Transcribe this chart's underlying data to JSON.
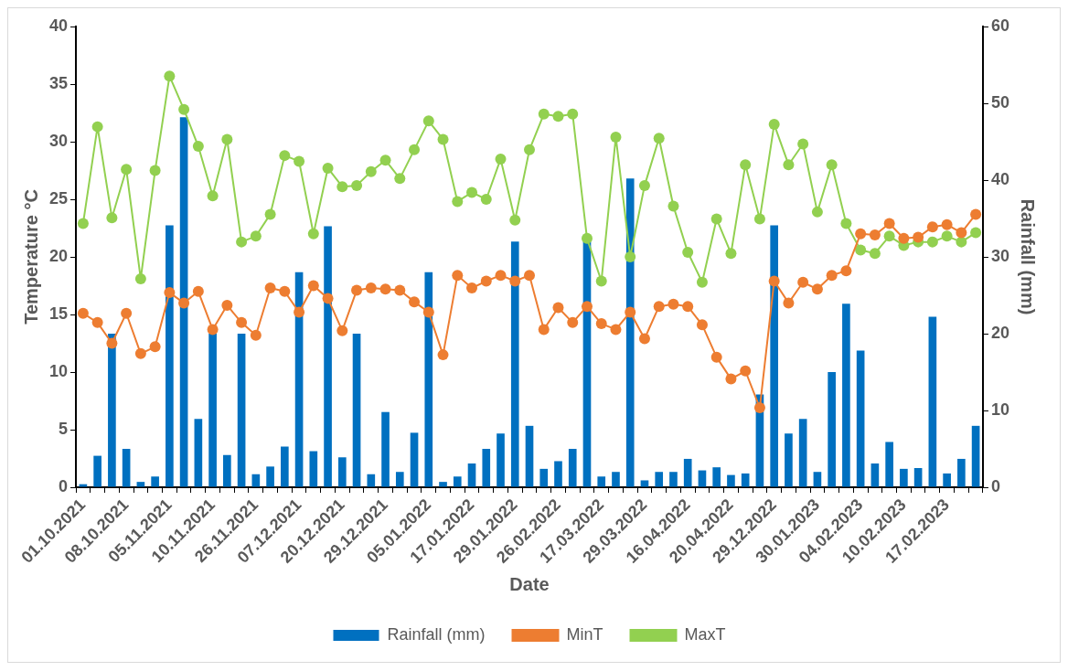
{
  "chart_data": {
    "type": "bar",
    "xlabel": "Date",
    "ylabel": "Temperature °C",
    "y2label": "Rainfall (mm)",
    "categories": [
      "01.10.2021",
      null,
      null,
      "08.10.2021",
      null,
      null,
      "05.11.2021",
      null,
      null,
      "10.11.2021",
      null,
      null,
      "26.11.2021",
      null,
      null,
      "07.12.2021",
      null,
      null,
      "20.12.2021",
      null,
      null,
      "29.12.2021",
      null,
      null,
      "05.01.2022",
      null,
      null,
      "17.01.2022",
      null,
      null,
      "29.01.2022",
      null,
      null,
      "26.02.2022",
      null,
      null,
      "17.03.2022",
      null,
      null,
      "29.03.2022",
      null,
      null,
      "16.04.2022",
      null,
      null,
      "20.04.2022",
      null,
      null,
      "29.12.2022",
      null,
      null,
      "30.01.2023",
      null,
      null,
      "04.02.2023",
      null,
      null,
      "10.02.2023",
      null,
      null,
      "17.02.2023",
      null,
      null
    ],
    "series": [
      {
        "name": "Rainfall (mm)",
        "axis": "y2",
        "color": "#0070c0",
        "values": [
          0.4,
          4.1,
          20,
          5.0,
          0.7,
          1.4,
          34.1,
          48.2,
          8.9,
          20,
          4.2,
          20,
          1.7,
          2.7,
          5.3,
          28,
          4.7,
          34,
          3.9,
          20,
          1.7,
          9.8,
          2.0,
          7.1,
          28,
          0.7,
          1.4,
          3.1,
          5.0,
          7.0,
          32,
          8.0,
          2.4,
          3.4,
          5.0,
          32,
          1.4,
          2.0,
          40.2,
          0.9,
          2.0,
          2.0,
          3.7,
          2.2,
          2.6,
          1.6,
          1.8,
          12.1,
          34.1,
          7.0,
          8.9,
          2.0,
          15,
          23.9,
          17.8,
          3.1,
          5.9,
          2.4,
          2.5,
          22.2,
          1.8,
          3.7,
          8.0
        ]
      },
      {
        "name": "MinT",
        "type": "line",
        "color": "#ed7d31",
        "values": [
          15.1,
          14.3,
          12.5,
          15.1,
          11.6,
          12.2,
          16.9,
          16.0,
          17.0,
          13.7,
          15.8,
          14.3,
          13.2,
          17.3,
          17.0,
          15.2,
          17.5,
          16.4,
          13.6,
          17.1,
          17.3,
          17.2,
          17.1,
          16.1,
          15.2,
          11.5,
          18.4,
          17.3,
          17.9,
          18.4,
          17.9,
          18.4,
          13.7,
          15.6,
          14.3,
          15.7,
          14.2,
          13.7,
          15.2,
          12.9,
          15.7,
          15.9,
          15.7,
          14.1,
          11.3,
          9.4,
          10.1,
          6.9,
          17.9,
          16.0,
          17.8,
          17.2,
          18.4,
          18.8,
          22.0,
          21.9,
          22.9,
          21.6,
          21.7,
          22.6,
          22.8,
          22.1,
          23.7
        ]
      },
      {
        "name": "MaxT",
        "type": "line",
        "color": "#92d050",
        "values": [
          22.9,
          31.3,
          23.4,
          27.6,
          18.1,
          27.5,
          35.7,
          32.8,
          29.6,
          25.3,
          30.2,
          21.3,
          21.8,
          23.7,
          28.8,
          28.3,
          22.0,
          27.7,
          26.1,
          26.2,
          27.4,
          28.4,
          26.8,
          29.3,
          31.8,
          30.2,
          24.8,
          25.6,
          25.0,
          28.5,
          23.2,
          29.3,
          32.4,
          32.2,
          32.4,
          21.6,
          17.9,
          30.4,
          20.0,
          26.2,
          30.3,
          24.4,
          20.4,
          17.8,
          23.3,
          20.3,
          28.0,
          23.3,
          31.5,
          28.0,
          29.8,
          23.9,
          28.0,
          22.9,
          20.6,
          20.3,
          21.8,
          21.0,
          21.3,
          21.3,
          21.8,
          21.3,
          22.1
        ]
      }
    ],
    "ylim": [
      0,
      40
    ],
    "yticks": [
      0,
      5,
      10,
      15,
      20,
      25,
      30,
      35,
      40
    ],
    "y2lim": [
      0,
      60
    ],
    "y2ticks": [
      0,
      10,
      20,
      30,
      40,
      50,
      60
    ],
    "grid": false,
    "legend": "bottom",
    "marker": "circle",
    "line_style": "solid"
  }
}
